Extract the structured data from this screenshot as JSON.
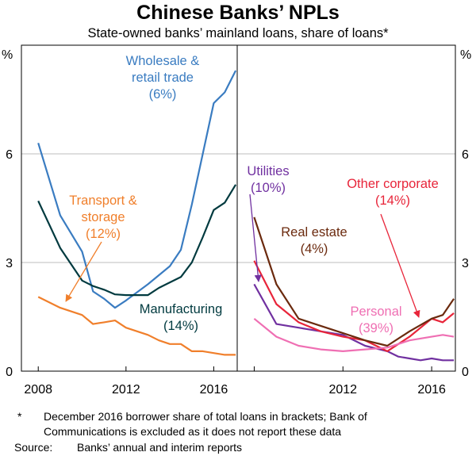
{
  "title": "Chinese Banks’ NPLs",
  "subtitle": "State-owned banks’ mainland loans, share of loans*",
  "chart_data": [
    {
      "type": "line",
      "panel": "left",
      "y_unit": "%",
      "ylim": [
        0,
        9
      ],
      "y_ticks": [
        0,
        3,
        6
      ],
      "xlim": [
        2008,
        2017.0
      ],
      "x_ticks": [
        2008,
        2012,
        2016
      ],
      "grid": true,
      "series": [
        {
          "name": "Wholesale & retail trade",
          "label_lines": [
            "Wholesale &",
            "retail trade",
            "(6%)"
          ],
          "color": "#3a7cc1",
          "x": [
            2008,
            2009,
            2010,
            2010.5,
            2011,
            2011.5,
            2012,
            2013,
            2013.5,
            2014,
            2014.5,
            2015,
            2015.5,
            2016,
            2016.5,
            2017
          ],
          "y": [
            6.3,
            4.3,
            3.3,
            2.2,
            2.0,
            1.75,
            1.95,
            2.4,
            2.65,
            2.9,
            3.35,
            4.6,
            6.0,
            7.4,
            7.7,
            8.3
          ]
        },
        {
          "name": "Manufacturing",
          "label_lines": [
            "Manufacturing",
            "(14%)"
          ],
          "color": "#003a3f",
          "x": [
            2008,
            2009,
            2010,
            2010.5,
            2011,
            2011.5,
            2012,
            2013,
            2013.5,
            2014,
            2014.5,
            2015,
            2015.5,
            2016,
            2016.5,
            2017
          ],
          "y": [
            4.7,
            3.4,
            2.5,
            2.35,
            2.25,
            2.12,
            2.1,
            2.1,
            2.3,
            2.45,
            2.6,
            3.0,
            3.7,
            4.45,
            4.65,
            5.15
          ]
        },
        {
          "name": "Transport & storage",
          "label_lines": [
            "Transport &",
            "storage",
            "(12%)"
          ],
          "color": "#f07f2b",
          "x": [
            2008,
            2009,
            2010,
            2010.5,
            2011,
            2011.5,
            2012,
            2013,
            2013.5,
            2014,
            2014.5,
            2015,
            2015.5,
            2016,
            2016.5,
            2017
          ],
          "y": [
            2.05,
            1.75,
            1.55,
            1.3,
            1.35,
            1.4,
            1.2,
            1.0,
            0.85,
            0.75,
            0.75,
            0.55,
            0.55,
            0.5,
            0.45,
            0.45
          ]
        }
      ]
    },
    {
      "type": "line",
      "panel": "right",
      "y_unit": "%",
      "ylim": [
        0,
        9
      ],
      "y_ticks": [
        0,
        3,
        6
      ],
      "xlim": [
        2008,
        2017.0
      ],
      "x_ticks": [
        2008,
        2012,
        2016
      ],
      "grid": true,
      "series": [
        {
          "name": "Utilities",
          "label_lines": [
            "Utilities",
            "(10%)"
          ],
          "color": "#7030a0",
          "x": [
            2008,
            2009,
            2010,
            2011,
            2012,
            2013,
            2014,
            2014.5,
            2015,
            2015.5,
            2016,
            2016.5,
            2017
          ],
          "y": [
            2.4,
            1.3,
            1.2,
            1.1,
            1.0,
            0.7,
            0.55,
            0.4,
            0.35,
            0.3,
            0.35,
            0.3,
            0.3
          ]
        },
        {
          "name": "Other corporate",
          "label_lines": [
            "Other corporate",
            "(14%)"
          ],
          "color": "#e8253a",
          "x": [
            2008,
            2009,
            2010,
            2011,
            2012,
            2013,
            2014,
            2015,
            2016,
            2016.5,
            2017
          ],
          "y": [
            3.05,
            1.85,
            1.35,
            1.1,
            0.95,
            0.85,
            0.55,
            0.95,
            1.45,
            1.35,
            1.6
          ]
        },
        {
          "name": "Real estate",
          "label_lines": [
            "Real estate",
            "(4%)"
          ],
          "color": "#6b2a0e",
          "x": [
            2008,
            2009,
            2010,
            2011,
            2012,
            2013,
            2014,
            2015,
            2016,
            2016.5,
            2017
          ],
          "y": [
            4.25,
            2.4,
            1.45,
            1.25,
            1.05,
            0.85,
            0.7,
            1.1,
            1.45,
            1.55,
            2.0
          ]
        },
        {
          "name": "Personal",
          "label_lines": [
            "Personal",
            "(39%)"
          ],
          "color": "#ef6fb3",
          "x": [
            2008,
            2009,
            2010,
            2011,
            2012,
            2013,
            2014,
            2015,
            2016,
            2016.5,
            2017
          ],
          "y": [
            1.45,
            0.95,
            0.7,
            0.6,
            0.55,
            0.6,
            0.65,
            0.85,
            0.95,
            1.0,
            0.95
          ]
        }
      ]
    }
  ],
  "footnote": {
    "marker": "*",
    "lines": [
      "December 2016 borrower share of total loans in brackets; Bank of",
      "Communications is excluded as it does not report these data"
    ]
  },
  "source": {
    "label": "Source:",
    "text": "Banks’ annual and interim reports"
  }
}
